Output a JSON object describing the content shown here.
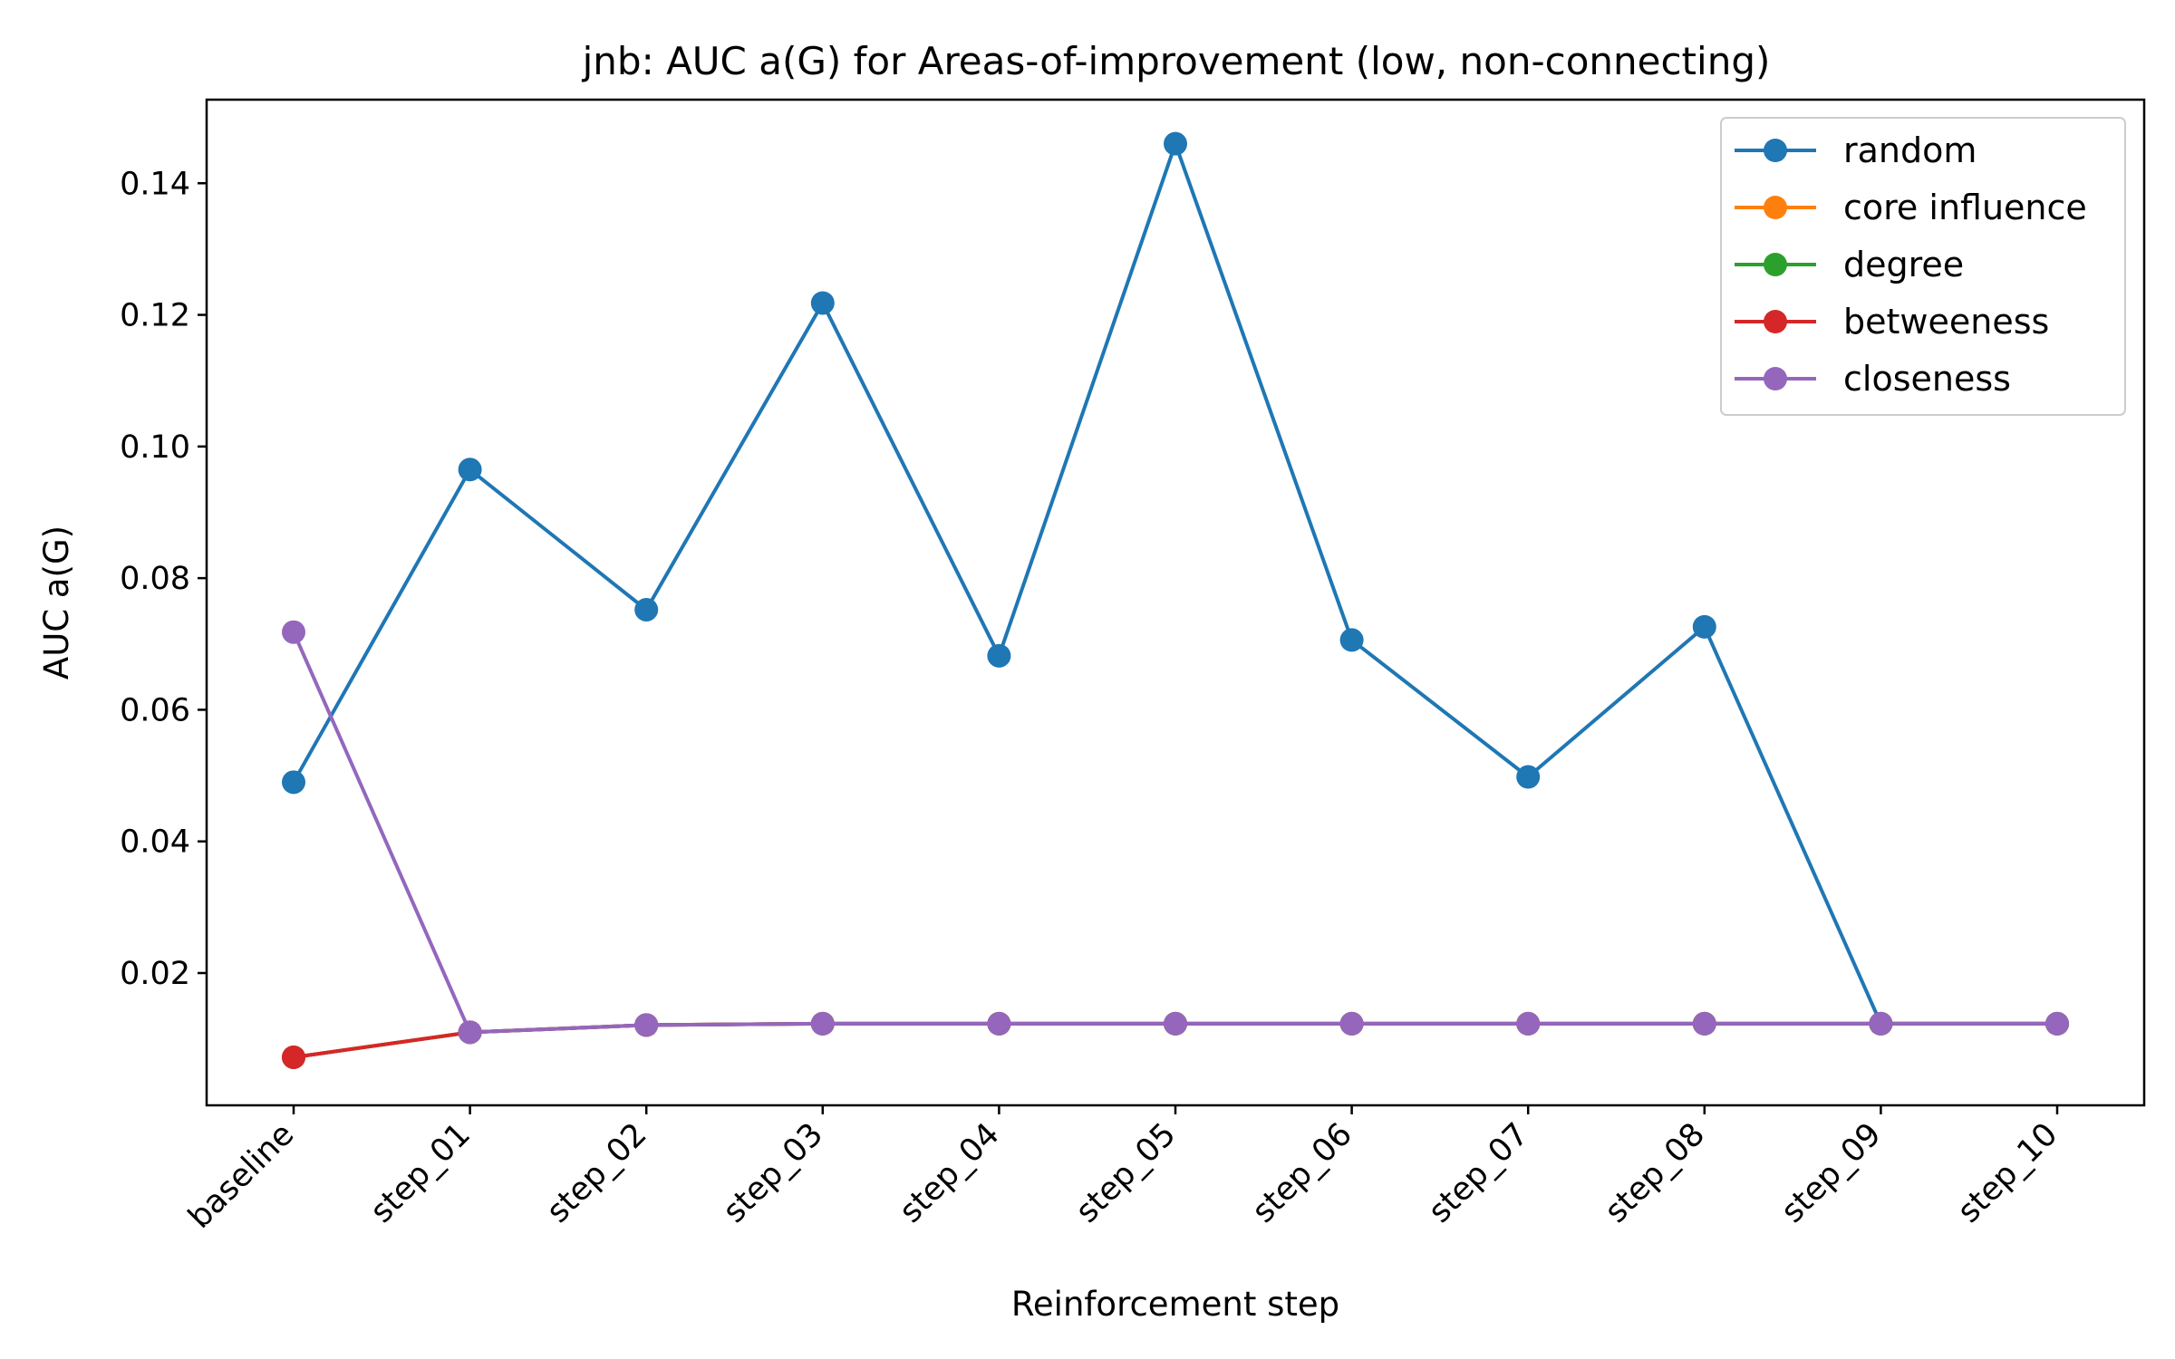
{
  "chart_data": {
    "type": "line",
    "title": "jnb: AUC a(G) for Areas-of-improvement (low, non-connecting)",
    "xlabel": "Reinforcement step",
    "ylabel": "AUC a(G)",
    "categories": [
      "baseline",
      "step_01",
      "step_02",
      "step_03",
      "step_04",
      "step_05",
      "step_06",
      "step_07",
      "step_08",
      "step_09",
      "step_10"
    ],
    "ylim": [
      -0.0001,
      0.1527
    ],
    "yticks": [
      0.02,
      0.04,
      0.06,
      0.08,
      0.1,
      0.12,
      0.14
    ],
    "ytick_labels": [
      "0.02",
      "0.04",
      "0.06",
      "0.08",
      "0.10",
      "0.12",
      "0.14"
    ],
    "grid": false,
    "legend_position": "top-right",
    "series": [
      {
        "name": "random",
        "color": "#1f77b4",
        "values": [
          0.049,
          0.0965,
          0.0752,
          0.1218,
          0.0682,
          0.146,
          0.0706,
          0.0498,
          0.0726,
          0.0123,
          0.0123
        ]
      },
      {
        "name": "core influence",
        "color": "#ff7f0e",
        "values": [
          0.0072,
          0.011,
          0.0121,
          0.0123,
          0.0123,
          0.0123,
          0.0123,
          0.0123,
          0.0123,
          0.0123,
          0.0123
        ]
      },
      {
        "name": "degree",
        "color": "#2ca02c",
        "values": [
          0.0072,
          0.011,
          0.0121,
          0.0123,
          0.0123,
          0.0123,
          0.0123,
          0.0123,
          0.0123,
          0.0123,
          0.0123
        ]
      },
      {
        "name": "betweeness",
        "color": "#d62728",
        "values": [
          0.0072,
          0.011,
          0.0121,
          0.0123,
          0.0123,
          0.0123,
          0.0123,
          0.0123,
          0.0123,
          0.0123,
          0.0123
        ]
      },
      {
        "name": "closeness",
        "color": "#9467bd",
        "values": [
          0.0718,
          0.011,
          0.0121,
          0.0123,
          0.0123,
          0.0123,
          0.0123,
          0.0123,
          0.0123,
          0.0123,
          0.0123
        ]
      }
    ]
  }
}
